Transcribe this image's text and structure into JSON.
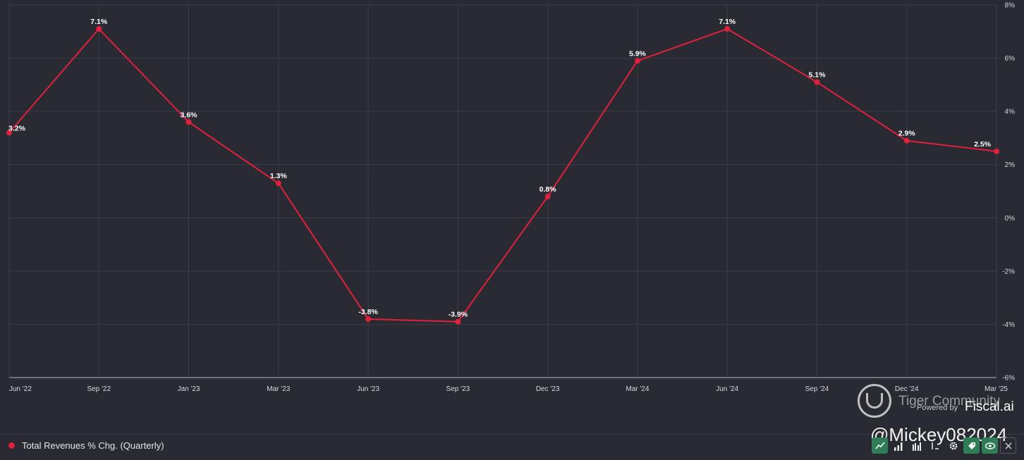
{
  "chart_data": {
    "type": "line",
    "categories": [
      "Jun '22",
      "Sep '22",
      "Jan '23",
      "Mar '23",
      "Jun '23",
      "Sep '23",
      "Dec '23",
      "Mar '24",
      "Jun '24",
      "Sep '24",
      "Dec '24",
      "Mar '25"
    ],
    "series": [
      {
        "name": "Total Revenues % Chg. (Quarterly)",
        "color": "#e0203c",
        "values": [
          3.2,
          7.1,
          3.6,
          1.3,
          -3.8,
          -3.9,
          0.8,
          5.9,
          7.1,
          5.1,
          2.9,
          2.5
        ],
        "labels": [
          "3.2%",
          "7.1%",
          "3.6%",
          "1.3%",
          "-3.8%",
          "-3.9%",
          "0.8%",
          "5.9%",
          "7.1%",
          "5.1%",
          "2.9%",
          "2.5%"
        ]
      }
    ],
    "yticks": [
      "8%",
      "6%",
      "4%",
      "2%",
      "0%",
      "-2%",
      "-4%",
      "-6%"
    ],
    "ylim": [
      -6,
      8
    ],
    "grid": true,
    "legend_position": "bottom-left",
    "background": "#2a2a33",
    "grid_color": "#3d3d47"
  },
  "watermark": {
    "community": "Tiger Community",
    "powered_by": "Powered by",
    "brand": "Fiscal.ai",
    "handle": "@Mickey082024"
  },
  "toolbar": {
    "icons": [
      "line-chart-icon",
      "bar-chart-icon",
      "grouped-bar-icon",
      "sort-icon",
      "gear-icon",
      "tag-icon",
      "eye-icon",
      "close-icon"
    ]
  }
}
